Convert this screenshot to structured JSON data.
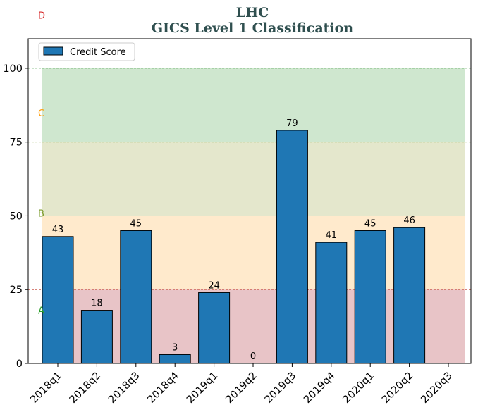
{
  "chart_data": {
    "type": "bar",
    "title": "LHC",
    "subtitle": "GICS Level 1 Classification",
    "xlabel": "",
    "ylabel": "",
    "ylim": [
      0,
      110
    ],
    "yticks": [
      0,
      25,
      50,
      75,
      100
    ],
    "grid": false,
    "legend_position": "top-left",
    "categories": [
      "2018q1",
      "2018q2",
      "2018q3",
      "2018q4",
      "2019q1",
      "2019q2",
      "2019q3",
      "2019q4",
      "2020q1",
      "2020q2",
      "2020q3"
    ],
    "series": [
      {
        "name": "Credit Score",
        "values": [
          43,
          18,
          45,
          3,
          24,
          0,
          79,
          41,
          45,
          46,
          null
        ],
        "data_labels": [
          "43",
          "18",
          "45",
          "3",
          "24",
          "0",
          "79",
          "41",
          "45",
          "46",
          ""
        ],
        "color": "#1f77b4"
      }
    ],
    "bands": [
      {
        "from": 0,
        "to": 25,
        "color": "#d18a8f",
        "line_color": "#c0392b"
      },
      {
        "from": 25,
        "to": 50,
        "color": "#ffd59a",
        "line_color": "#e69500"
      },
      {
        "from": 50,
        "to": 75,
        "color": "#c9cf9a",
        "line_color": "#7a9a2a"
      },
      {
        "from": 75,
        "to": 100,
        "color": "#9fd0a0",
        "line_color": "#2e8b2e"
      }
    ],
    "band_letters": [
      {
        "text": "A",
        "value": 18,
        "color": "#2ca02c"
      },
      {
        "text": "B",
        "value": 51,
        "color": "#7a9a2a"
      },
      {
        "text": "C",
        "value": 85,
        "color": "#ff9900"
      },
      {
        "text": "D",
        "value": 118,
        "color": "#d62728"
      }
    ]
  }
}
